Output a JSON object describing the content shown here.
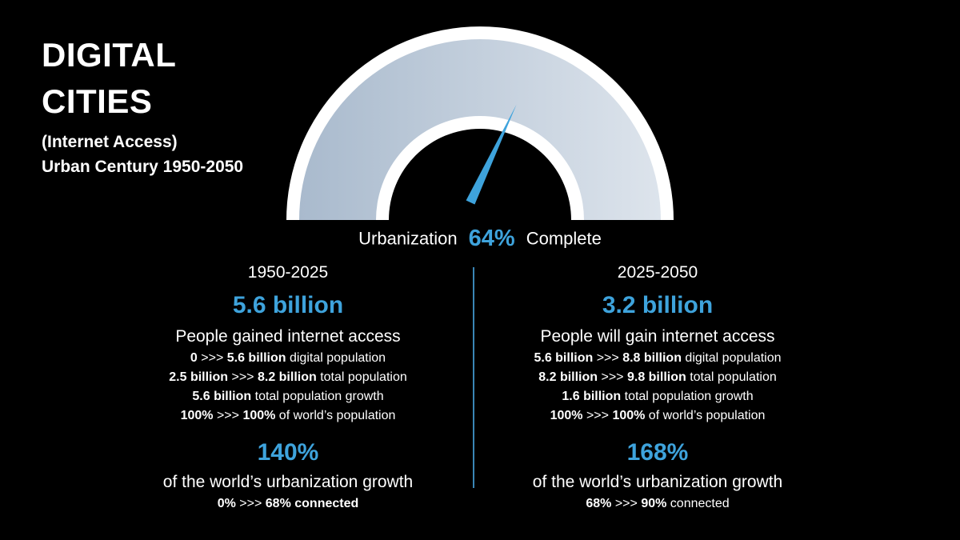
{
  "title": {
    "line1": "DIGITAL",
    "line2": "CITIES",
    "subtitle1": "(Internet Access)",
    "subtitle2": "Urban Century 1950-2050"
  },
  "gauge": {
    "progress": 0.64,
    "arc_color_start": "#a9bacd",
    "arc_color_end": "#dde4ec",
    "border_color": "#ffffff",
    "needle_color": "#3ea3dc"
  },
  "urbanization": {
    "prefix": "Urbanization",
    "percent": "64%",
    "suffix": "Complete"
  },
  "left": {
    "period": "1950-2025",
    "headline": "5.6 billion",
    "description": "People gained internet access",
    "stats": [
      {
        "a": "0",
        "sep1": " >>> ",
        "b": "5.6 billion",
        "rest": " digital population"
      },
      {
        "a": "2.5 billion",
        "sep1": " >>> ",
        "b": "8.2 billion",
        "rest": " total population"
      },
      {
        "a": "",
        "sep1": "",
        "b": "5.6 billion",
        "rest": " total population growth"
      },
      {
        "a": "100%",
        "sep1": " >>> ",
        "b": "100%",
        "rest": " of world’s population"
      }
    ],
    "growth_percent": "140%",
    "growth_text": "of the world’s urbanization growth",
    "connected": {
      "a": "0%",
      "sep": " >>> ",
      "b": "68% connected"
    }
  },
  "right": {
    "period": "2025-2050",
    "headline": "3.2 billion",
    "description": "People will gain internet access",
    "stats": [
      {
        "a": "5.6 billion",
        "sep1": " >>> ",
        "b": "8.8 billion",
        "rest": " digital population"
      },
      {
        "a": "8.2 billion",
        "sep1": " >>> ",
        "b": "9.8 billion",
        "rest": " total population"
      },
      {
        "a": "",
        "sep1": "",
        "b": "1.6 billion",
        "rest": " total population growth"
      },
      {
        "a": "100%",
        "sep1": " >>> ",
        "b": "100%",
        "rest": " of world’s population"
      }
    ],
    "growth_percent": "168%",
    "growth_text": "of the world’s urbanization growth",
    "connected": {
      "a": "68%",
      "sep": " >>> ",
      "b": "90%",
      "rest": " connected"
    }
  }
}
